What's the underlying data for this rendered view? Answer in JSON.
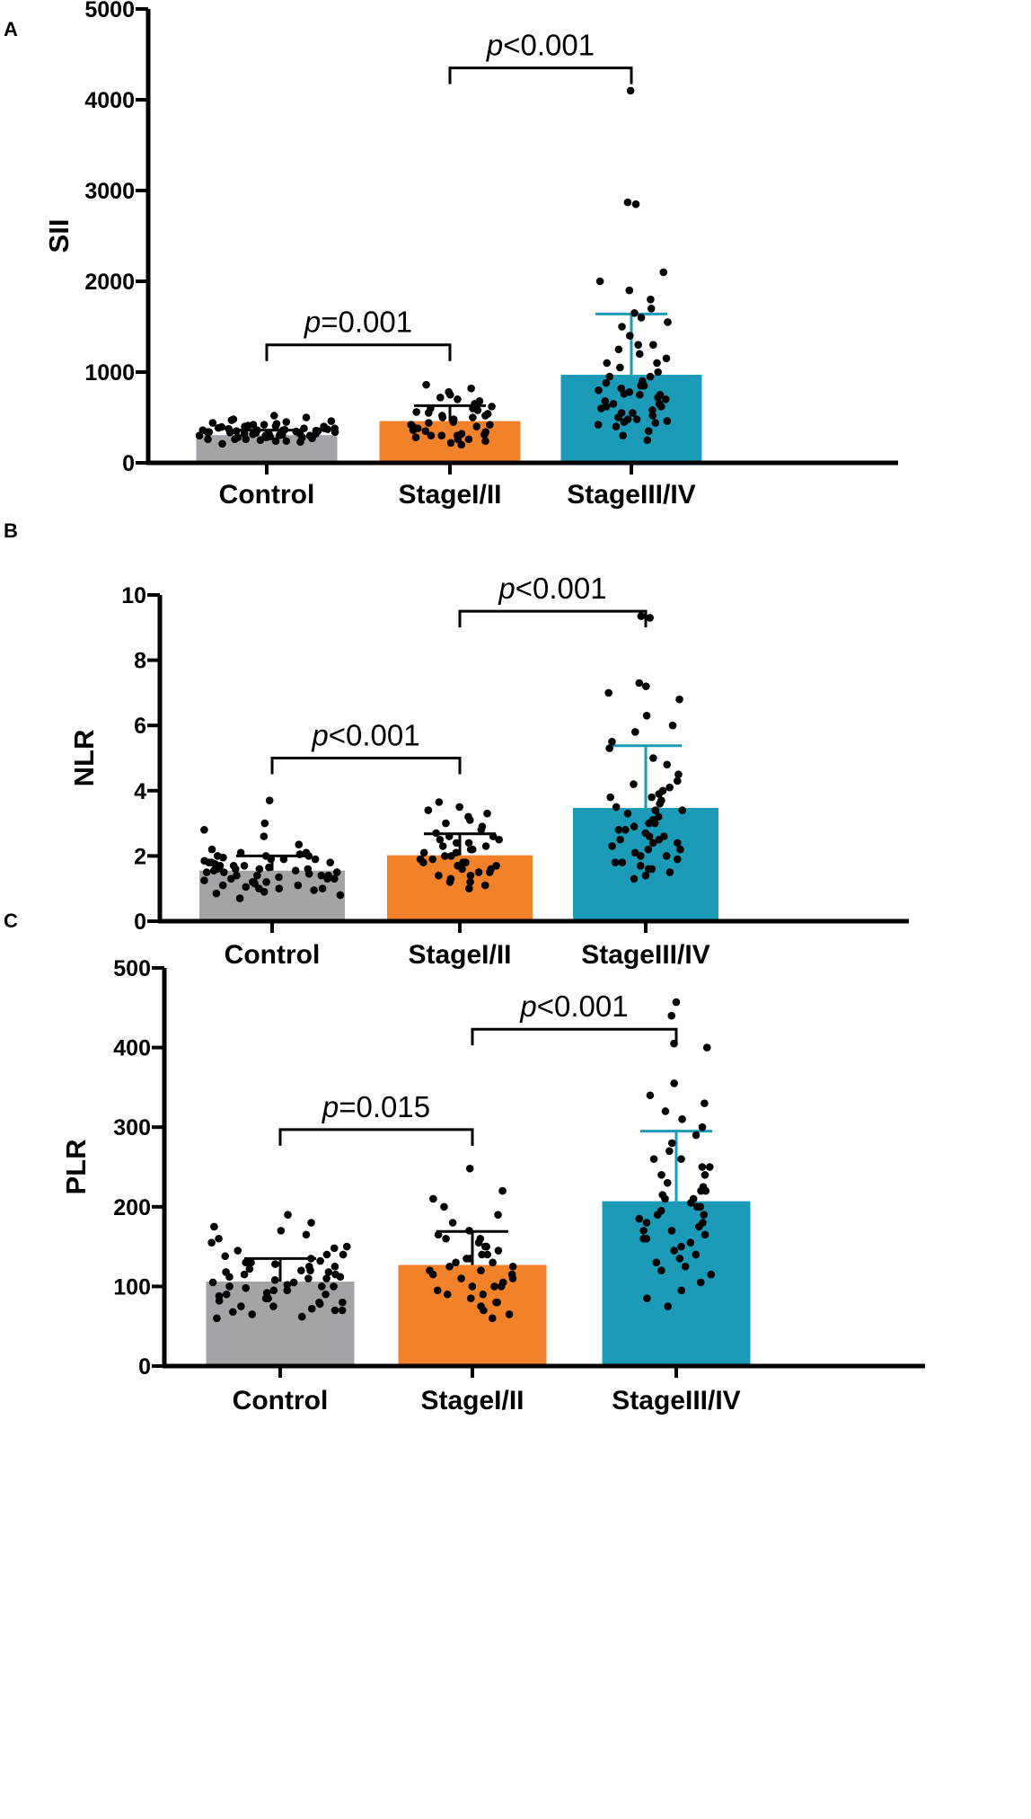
{
  "colors": {
    "control": "#a3a3a8",
    "stage_1_2": "#f2822a",
    "stage_3_4": "#1b9bb8",
    "stage_3_4_errorbar": "#1b9bb8",
    "axis": "#000000",
    "dot": "#000000"
  },
  "chart_data": [
    {
      "panel": "A",
      "type": "bar",
      "ylabel": "SII",
      "ylim": [
        0,
        5000
      ],
      "yticks": [
        0,
        1000,
        2000,
        3000,
        4000,
        5000
      ],
      "categories": [
        "Control",
        "StageI/II",
        "StageIII/IV"
      ],
      "values": [
        305,
        460,
        970
      ],
      "error_upper": [
        360,
        630,
        1640
      ],
      "points": [
        [
          210,
          230,
          240,
          250,
          260,
          270,
          280,
          285,
          290,
          295,
          300,
          305,
          310,
          315,
          320,
          325,
          330,
          335,
          340,
          345,
          350,
          355,
          360,
          365,
          370,
          375,
          380,
          385,
          390,
          395,
          400,
          405,
          410,
          420,
          430,
          440,
          450,
          460,
          470,
          480,
          500,
          520,
          240,
          260,
          280,
          300,
          320,
          340,
          360,
          380,
          400,
          420,
          260,
          300,
          340,
          380,
          280,
          320,
          360,
          310,
          330,
          350
        ],
        [
          200,
          220,
          240,
          260,
          280,
          300,
          310,
          320,
          340,
          360,
          380,
          400,
          420,
          440,
          460,
          480,
          500,
          520,
          540,
          560,
          580,
          600,
          620,
          650,
          680,
          700,
          720,
          750,
          780,
          820,
          860,
          260,
          300,
          350,
          400,
          450,
          500,
          550,
          600,
          300,
          420,
          520
        ],
        [
          250,
          300,
          350,
          400,
          420,
          440,
          460,
          480,
          500,
          520,
          550,
          580,
          600,
          620,
          650,
          680,
          700,
          720,
          750,
          780,
          800,
          820,
          850,
          880,
          900,
          950,
          1000,
          1050,
          1100,
          1150,
          1200,
          1250,
          1300,
          1400,
          1500,
          1550,
          1600,
          1650,
          1700,
          1800,
          1900,
          2000,
          2100,
          2850,
          2870,
          4100,
          450,
          550,
          650,
          750,
          850,
          950,
          1100,
          1300,
          480,
          620,
          760
        ]
      ],
      "comparisons": [
        {
          "from": 0,
          "to": 1,
          "text": "=0.001",
          "y": 1300
        },
        {
          "from": 1,
          "to": 2,
          "text": "<0.001",
          "y": 4350
        }
      ]
    },
    {
      "panel": "B",
      "type": "bar",
      "ylabel": "NLR",
      "ylim": [
        0,
        10
      ],
      "yticks": [
        0,
        2,
        4,
        6,
        8,
        10
      ],
      "categories": [
        "Control",
        "StageI/II",
        "StageIII/IV"
      ],
      "values": [
        1.55,
        2.02,
        3.47
      ],
      "error_upper": [
        2.0,
        2.68,
        5.38
      ],
      "points": [
        [
          0.7,
          0.8,
          0.85,
          0.9,
          0.95,
          1.0,
          1.05,
          1.1,
          1.15,
          1.2,
          1.25,
          1.3,
          1.35,
          1.4,
          1.45,
          1.5,
          1.55,
          1.6,
          1.65,
          1.7,
          1.75,
          1.8,
          1.85,
          1.9,
          1.95,
          2.0,
          2.05,
          2.1,
          2.2,
          2.35,
          2.6,
          2.8,
          3.0,
          3.7,
          1.0,
          1.2,
          1.4,
          1.6,
          1.8,
          2.0,
          1.1,
          1.3,
          1.5,
          1.7,
          1.9,
          2.1,
          1.2,
          1.4,
          1.6,
          1.8,
          1.0,
          1.5,
          1.7,
          1.9,
          1.3,
          1.6,
          1.8,
          2.0,
          1.4,
          1.55
        ],
        [
          1.0,
          1.1,
          1.2,
          1.3,
          1.4,
          1.5,
          1.6,
          1.7,
          1.8,
          1.9,
          2.0,
          2.1,
          2.2,
          2.3,
          2.4,
          2.5,
          2.6,
          2.7,
          2.8,
          2.9,
          3.0,
          3.1,
          3.2,
          3.3,
          3.4,
          3.5,
          3.65,
          1.4,
          1.6,
          1.8,
          2.0,
          2.2,
          2.4,
          2.6,
          1.5,
          1.9,
          2.3,
          1.2,
          1.7,
          2.1,
          2.5,
          1.8
        ],
        [
          1.3,
          1.4,
          1.5,
          1.6,
          1.7,
          1.8,
          1.9,
          2.0,
          2.1,
          2.2,
          2.3,
          2.4,
          2.5,
          2.6,
          2.7,
          2.8,
          2.9,
          3.0,
          3.1,
          3.2,
          3.3,
          3.4,
          3.5,
          3.6,
          3.7,
          3.8,
          3.9,
          4.0,
          4.1,
          4.3,
          4.5,
          4.8,
          5.0,
          5.3,
          5.5,
          5.8,
          6.0,
          6.3,
          6.8,
          7.0,
          7.2,
          7.3,
          9.3,
          9.35,
          1.8,
          2.2,
          2.6,
          3.0,
          3.4,
          3.8,
          2.0,
          2.4,
          2.8,
          1.6,
          2.5,
          4.2
        ]
      ],
      "comparisons": [
        {
          "from": 0,
          "to": 1,
          "text": "<0.001",
          "y": 5.0
        },
        {
          "from": 1,
          "to": 2,
          "text": "<0.001",
          "y": 9.5
        }
      ]
    },
    {
      "panel": "C",
      "type": "bar",
      "ylabel": "PLR",
      "ylim": [
        0,
        500
      ],
      "yticks": [
        0,
        100,
        200,
        300,
        400,
        500
      ],
      "categories": [
        "Control",
        "StageI/II",
        "StageIII/IV"
      ],
      "values": [
        106,
        127,
        207
      ],
      "error_upper": [
        135,
        169,
        295
      ],
      "points": [
        [
          60,
          62,
          65,
          68,
          70,
          72,
          75,
          78,
          80,
          82,
          85,
          88,
          90,
          92,
          95,
          98,
          100,
          102,
          105,
          108,
          110,
          112,
          115,
          118,
          120,
          122,
          125,
          128,
          130,
          135,
          140,
          145,
          150,
          155,
          160,
          165,
          170,
          175,
          180,
          190,
          70,
          80,
          90,
          100,
          110,
          120,
          130,
          140,
          85,
          95,
          105,
          115,
          125,
          75,
          100,
          112,
          118,
          132,
          138,
          148
        ],
        [
          60,
          65,
          70,
          75,
          80,
          85,
          90,
          95,
          100,
          105,
          110,
          115,
          120,
          125,
          130,
          135,
          140,
          145,
          150,
          155,
          160,
          165,
          170,
          180,
          190,
          200,
          210,
          220,
          248,
          80,
          100,
          120,
          140,
          160,
          90,
          110,
          130,
          150,
          100,
          125,
          115,
          135
        ],
        [
          75,
          85,
          95,
          105,
          115,
          125,
          135,
          145,
          150,
          155,
          160,
          165,
          170,
          175,
          180,
          185,
          190,
          195,
          200,
          205,
          210,
          215,
          220,
          225,
          230,
          240,
          250,
          260,
          270,
          280,
          290,
          300,
          310,
          320,
          330,
          340,
          355,
          400,
          405,
          440,
          457,
          120,
          140,
          160,
          180,
          200,
          220,
          240,
          260,
          130,
          170,
          210,
          250,
          190
        ]
      ],
      "comparisons": [
        {
          "from": 0,
          "to": 1,
          "text": "=0.015",
          "y": 297
        },
        {
          "from": 1,
          "to": 2,
          "text": "<0.001",
          "y": 423
        }
      ]
    }
  ]
}
